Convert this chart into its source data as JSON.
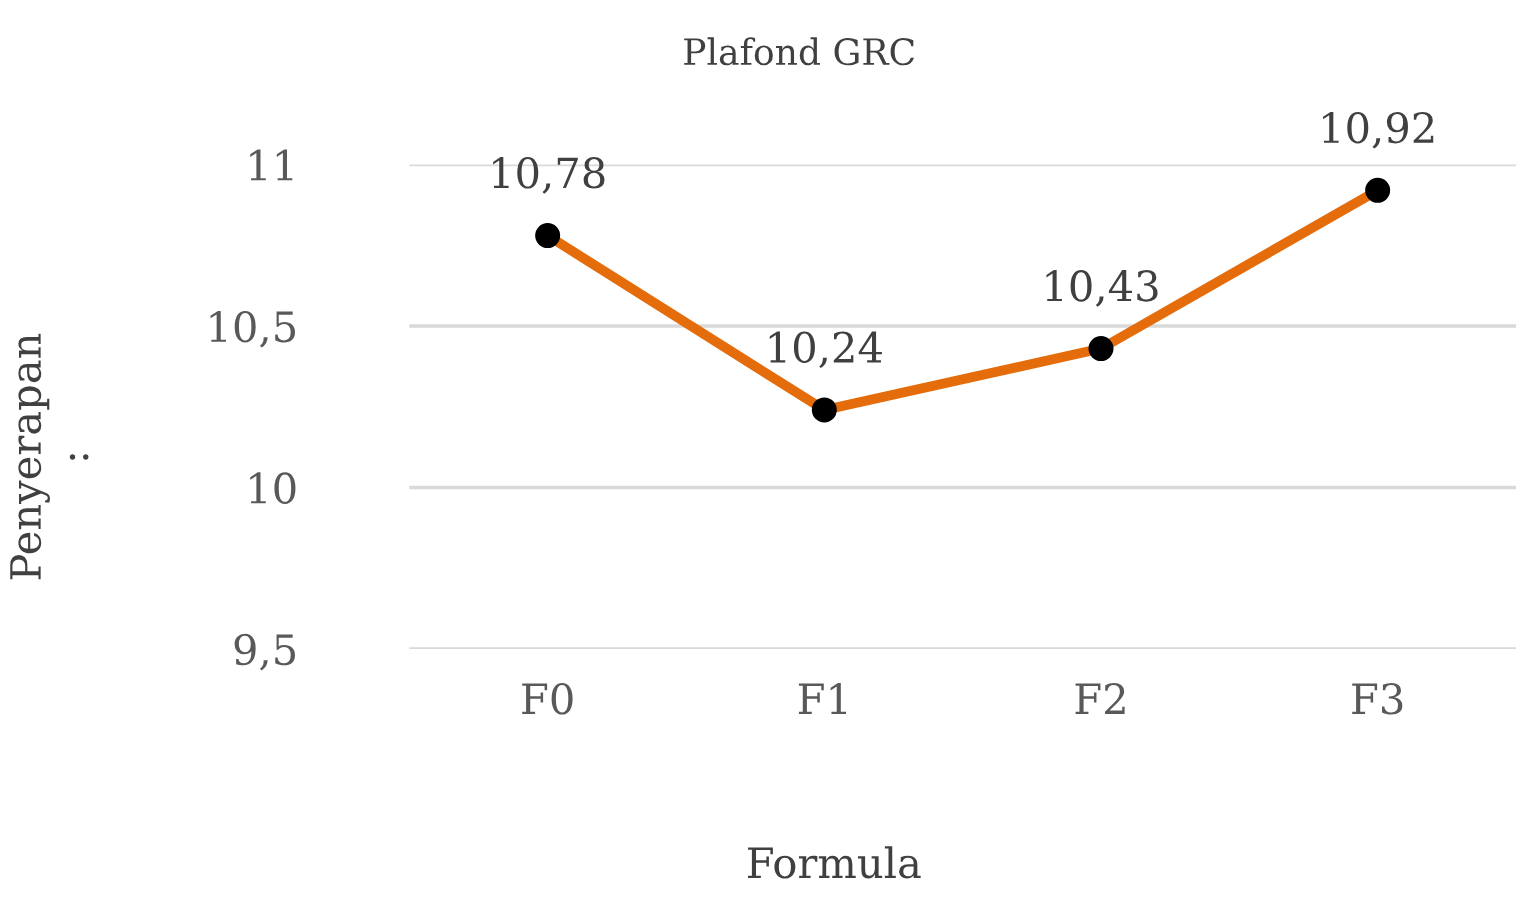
{
  "chart_data": {
    "type": "line",
    "title": "Plafond GRC",
    "xlabel": "Formula",
    "ylabel": "Penyerapan\n:",
    "categories": [
      "F0",
      "F1",
      "F2",
      "F3"
    ],
    "series": [
      {
        "color": "#e46c0a",
        "values": [
          10.78,
          10.24,
          10.43,
          10.92
        ],
        "value_labels": [
          "10,78",
          "10,24",
          "10,43",
          "10,92"
        ]
      }
    ],
    "ylim": [
      9.5,
      11
    ],
    "yticks": [
      {
        "value": 9.5,
        "label": "9,5"
      },
      {
        "value": 10,
        "label": "10"
      },
      {
        "value": 10.5,
        "label": "10,5"
      },
      {
        "value": 11,
        "label": "11"
      }
    ],
    "grid": "y",
    "marker": "circle",
    "line_style": "solid",
    "legend": false
  }
}
